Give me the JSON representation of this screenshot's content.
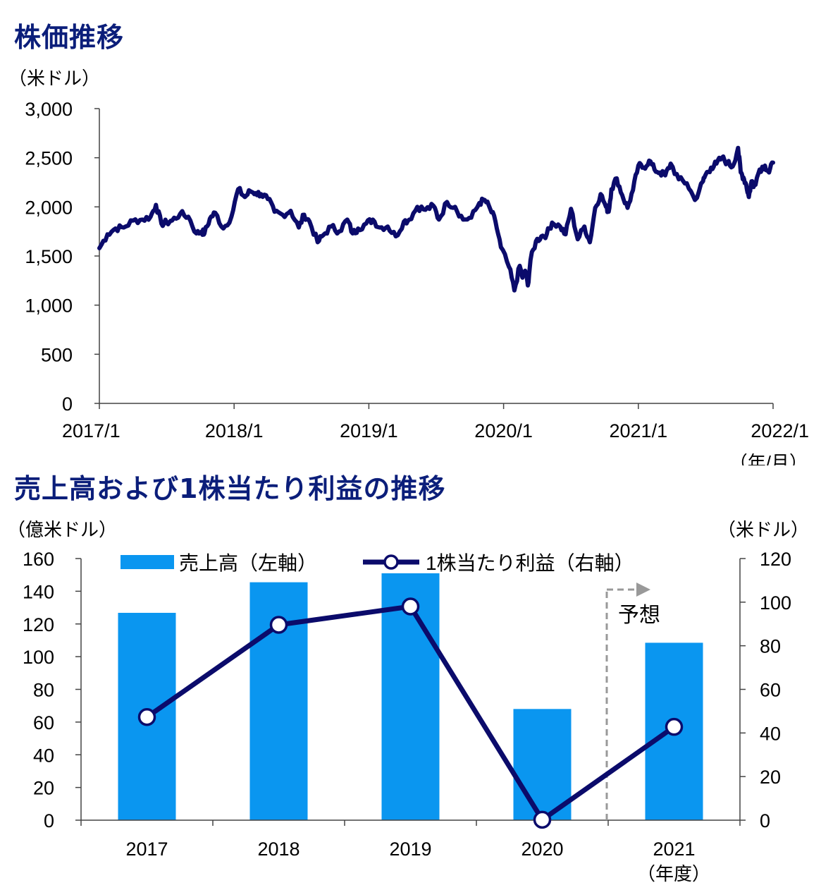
{
  "chart_data": [
    {
      "type": "line",
      "title": "株価推移",
      "yunit": "（米ドル）",
      "xunit": "（年/月）",
      "yticks": [
        "0",
        "500",
        "1,000",
        "1,500",
        "2,000",
        "2,500",
        "3,000"
      ],
      "ylim": [
        0,
        3000
      ],
      "xticks": [
        "2017/1",
        "2018/1",
        "2019/1",
        "2020/1",
        "2021/1",
        "2022/1"
      ],
      "xlim": [
        2017.0,
        2022.0
      ],
      "line_color": "#0b0b6b",
      "series": [
        {
          "x": [
            2017.0,
            2017.06,
            2017.12,
            2017.18,
            2017.25,
            2017.32,
            2017.38,
            2017.42,
            2017.46,
            2017.5,
            2017.54,
            2017.6,
            2017.66,
            2017.72,
            2017.76,
            2017.78,
            2017.82,
            2017.86,
            2017.92,
            2017.98,
            2018.03,
            2018.08,
            2018.12,
            2018.16,
            2018.2,
            2018.25,
            2018.3,
            2018.36,
            2018.42,
            2018.48,
            2018.52,
            2018.56,
            2018.62,
            2018.66,
            2018.72,
            2018.78,
            2018.84,
            2018.88,
            2018.92,
            2018.98,
            2019.03,
            2019.08,
            2019.14,
            2019.2,
            2019.26,
            2019.3,
            2019.36,
            2019.42,
            2019.48,
            2019.52,
            2019.58,
            2019.64,
            2019.7,
            2019.76,
            2019.82,
            2019.86,
            2019.9,
            2019.94,
            2019.98,
            2020.04,
            2020.08,
            2020.12,
            2020.14,
            2020.16,
            2020.18,
            2020.2,
            2020.24,
            2020.28,
            2020.32,
            2020.36,
            2020.42,
            2020.46,
            2020.5,
            2020.55,
            2020.6,
            2020.64,
            2020.68,
            2020.72,
            2020.76,
            2020.78,
            2020.8,
            2020.84,
            2020.88,
            2020.92,
            2020.96,
            2021.0,
            2021.04,
            2021.08,
            2021.12,
            2021.16,
            2021.2,
            2021.24,
            2021.3,
            2021.36,
            2021.42,
            2021.48,
            2021.5,
            2021.54,
            2021.58,
            2021.62,
            2021.66,
            2021.7,
            2021.74,
            2021.76,
            2021.78,
            2021.8,
            2021.82,
            2021.84,
            2021.86,
            2021.9,
            2021.94,
            2021.97,
            2022.0
          ],
          "y": [
            1580,
            1720,
            1780,
            1790,
            1860,
            1870,
            1900,
            2020,
            1830,
            1840,
            1860,
            1930,
            1900,
            1730,
            1750,
            1730,
            1880,
            1940,
            1780,
            1900,
            2180,
            2100,
            2160,
            2140,
            2130,
            2080,
            1950,
            1920,
            1960,
            1790,
            1920,
            1850,
            1640,
            1710,
            1800,
            1750,
            1870,
            1730,
            1780,
            1830,
            1870,
            1790,
            1800,
            1700,
            1850,
            1870,
            2000,
            1970,
            2010,
            1870,
            2050,
            2000,
            1870,
            1890,
            2040,
            2070,
            1980,
            1850,
            1590,
            1390,
            1150,
            1400,
            1280,
            1350,
            1200,
            1460,
            1650,
            1700,
            1720,
            1840,
            1800,
            1720,
            1980,
            1670,
            1800,
            1640,
            1990,
            2130,
            2000,
            1950,
            2180,
            2290,
            2120,
            1990,
            2170,
            2420,
            2400,
            2470,
            2380,
            2350,
            2320,
            2440,
            2280,
            2240,
            2070,
            2260,
            2330,
            2400,
            2440,
            2500,
            2450,
            2410,
            2600,
            2350,
            2300,
            2230,
            2100,
            2260,
            2220,
            2380,
            2420,
            2350,
            2450
          ]
        }
      ]
    },
    {
      "type": "bar+line",
      "title": "売上高および1株当たり利益の推移",
      "left_unit": "（億米ドル）",
      "right_unit": "（米ドル）",
      "xunit": "（年度）",
      "categories": [
        "2017",
        "2018",
        "2019",
        "2020",
        "2021"
      ],
      "left_ticks": [
        "0",
        "20",
        "40",
        "60",
        "80",
        "100",
        "120",
        "140",
        "160"
      ],
      "right_ticks": [
        "0",
        "20",
        "40",
        "60",
        "80",
        "100",
        "120"
      ],
      "left_ylim": [
        0,
        160
      ],
      "right_ylim": [
        0,
        120
      ],
      "series": [
        {
          "name": "売上高（左軸）",
          "axis": "left",
          "kind": "bar",
          "color": "#0a96f0",
          "values": [
            126.8,
            145.5,
            151.0,
            68.0,
            108.5
          ]
        },
        {
          "name": "1株当たり利益（右軸）",
          "axis": "right",
          "kind": "line",
          "color": "#0b0b6b",
          "values": [
            47.3,
            89.6,
            98.0,
            0.2,
            42.8
          ]
        }
      ],
      "annotation": "予想"
    }
  ]
}
